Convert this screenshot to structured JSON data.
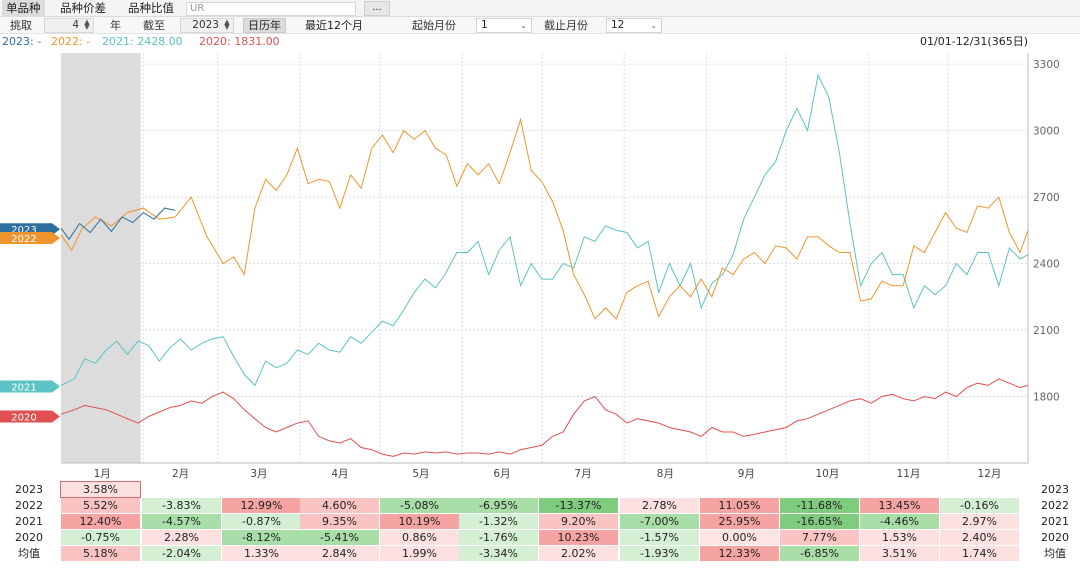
{
  "tabs": [
    {
      "label": "单品种",
      "active": true
    },
    {
      "label": "品种价差",
      "active": false
    },
    {
      "label": "品种比值",
      "active": false
    }
  ],
  "search": {
    "value": "UR",
    "more_label": "..."
  },
  "controls": {
    "select_label": "挑取",
    "start_year_value": "4",
    "year_label": "年",
    "end_label": "截至",
    "end_year_value": "2023",
    "calendar_btn": "日历年",
    "recent12_btn": "最近12个月",
    "start_month_label": "起始月份",
    "start_month_value": "1",
    "end_month_label": "截止月份",
    "end_month_value": "12"
  },
  "legend": [
    {
      "text": "2023: -",
      "color": "#2e6f9e"
    },
    {
      "text": "2022: -",
      "color": "#f0952d"
    },
    {
      "text": "2021: 2428.00",
      "color": "#5bc3c3"
    },
    {
      "text": "2020: 1831.00",
      "color": "#e05050"
    }
  ],
  "date_range": "01/01-12/31(365日)",
  "chart_data": {
    "type": "line",
    "title": "",
    "x_unit": "day_of_year",
    "xlim": [
      1,
      365
    ],
    "ylim": [
      1500,
      3350
    ],
    "y_ticks": [
      1800,
      2100,
      2400,
      2700,
      3000,
      3300
    ],
    "month_labels": [
      "1月",
      "2月",
      "3月",
      "4月",
      "5月",
      "6月",
      "7月",
      "8月",
      "9月",
      "10月",
      "11月",
      "12月"
    ],
    "shade_range_days": [
      1,
      31
    ],
    "series": [
      {
        "name": "2023",
        "color": "#2e6f9e",
        "tag": "2023",
        "tag_value": 2555,
        "x": [
          1,
          4,
          8,
          12,
          16,
          20,
          24,
          28,
          32,
          36,
          40,
          44
        ],
        "values": [
          2560,
          2510,
          2580,
          2540,
          2600,
          2545,
          2610,
          2585,
          2630,
          2600,
          2650,
          2640
        ]
      },
      {
        "name": "2022",
        "color": "#f0952d",
        "tag": "2022",
        "tag_value": 2515,
        "x": [
          1,
          5,
          9,
          14,
          20,
          26,
          32,
          38,
          44,
          50,
          56,
          62,
          66,
          70,
          74,
          78,
          82,
          86,
          90,
          94,
          98,
          102,
          106,
          110,
          114,
          118,
          122,
          126,
          130,
          134,
          138,
          142,
          146,
          150,
          154,
          158,
          162,
          166,
          170,
          174,
          178,
          182,
          186,
          190,
          194,
          198,
          202,
          206,
          210,
          214,
          218,
          222,
          226,
          230,
          234,
          238,
          242,
          246,
          250,
          254,
          258,
          262,
          266,
          270,
          274,
          278,
          282,
          286,
          290,
          294,
          298,
          302,
          306,
          310,
          314,
          318,
          322,
          326,
          330,
          334,
          338,
          342,
          346,
          350,
          354,
          358,
          362,
          365
        ],
        "values": [
          2530,
          2460,
          2560,
          2610,
          2570,
          2630,
          2650,
          2600,
          2610,
          2700,
          2520,
          2400,
          2430,
          2350,
          2650,
          2780,
          2730,
          2800,
          2920,
          2760,
          2780,
          2770,
          2650,
          2800,
          2740,
          2920,
          2980,
          2900,
          3000,
          2960,
          3000,
          2920,
          2890,
          2750,
          2850,
          2800,
          2850,
          2760,
          2900,
          3050,
          2820,
          2770,
          2680,
          2550,
          2350,
          2260,
          2150,
          2200,
          2150,
          2270,
          2300,
          2320,
          2160,
          2250,
          2300,
          2250,
          2330,
          2250,
          2380,
          2350,
          2420,
          2450,
          2400,
          2480,
          2470,
          2420,
          2520,
          2520,
          2480,
          2450,
          2450,
          2230,
          2240,
          2320,
          2300,
          2300,
          2480,
          2450,
          2540,
          2630,
          2560,
          2540,
          2660,
          2650,
          2700,
          2540,
          2450,
          2550
        ]
      },
      {
        "name": "2021",
        "color": "#5bc3c3",
        "tag": "2021",
        "tag_value": 1845,
        "x": [
          1,
          6,
          10,
          14,
          18,
          22,
          26,
          30,
          34,
          38,
          42,
          46,
          50,
          54,
          58,
          62,
          66,
          70,
          74,
          78,
          82,
          86,
          90,
          94,
          98,
          102,
          106,
          110,
          114,
          118,
          122,
          126,
          130,
          134,
          138,
          142,
          146,
          150,
          154,
          158,
          162,
          166,
          170,
          174,
          178,
          182,
          186,
          190,
          194,
          198,
          202,
          206,
          210,
          214,
          218,
          222,
          226,
          230,
          234,
          238,
          242,
          246,
          250,
          254,
          258,
          262,
          266,
          270,
          274,
          278,
          282,
          286,
          290,
          294,
          298,
          302,
          306,
          310,
          314,
          318,
          322,
          326,
          330,
          334,
          338,
          342,
          346,
          350,
          354,
          358,
          362,
          365
        ],
        "values": [
          1850,
          1880,
          1970,
          1950,
          2010,
          2050,
          1990,
          2050,
          2030,
          1960,
          2020,
          2060,
          2010,
          2040,
          2060,
          2070,
          1980,
          1900,
          1850,
          1960,
          1930,
          1950,
          2010,
          1990,
          2040,
          2010,
          2000,
          2070,
          2040,
          2090,
          2140,
          2120,
          2190,
          2270,
          2330,
          2290,
          2360,
          2450,
          2450,
          2500,
          2350,
          2460,
          2520,
          2300,
          2400,
          2330,
          2330,
          2400,
          2380,
          2520,
          2500,
          2570,
          2550,
          2540,
          2470,
          2500,
          2270,
          2400,
          2300,
          2400,
          2200,
          2310,
          2350,
          2440,
          2600,
          2700,
          2800,
          2860,
          3000,
          3100,
          3000,
          3250,
          3150,
          2900,
          2580,
          2300,
          2400,
          2450,
          2350,
          2350,
          2200,
          2300,
          2260,
          2300,
          2400,
          2350,
          2450,
          2450,
          2300,
          2470,
          2420,
          2440
        ]
      },
      {
        "name": "2020",
        "color": "#e05050",
        "tag": "2020",
        "tag_value": 1710,
        "x": [
          1,
          6,
          10,
          14,
          18,
          22,
          26,
          30,
          34,
          38,
          42,
          46,
          50,
          54,
          58,
          62,
          66,
          70,
          74,
          78,
          82,
          86,
          90,
          94,
          98,
          102,
          106,
          110,
          114,
          118,
          122,
          126,
          130,
          134,
          138,
          142,
          146,
          150,
          154,
          158,
          162,
          166,
          170,
          174,
          178,
          182,
          186,
          190,
          194,
          198,
          202,
          206,
          210,
          214,
          218,
          222,
          226,
          230,
          234,
          238,
          242,
          246,
          250,
          254,
          258,
          262,
          266,
          270,
          274,
          278,
          282,
          286,
          290,
          294,
          298,
          302,
          306,
          310,
          314,
          318,
          322,
          326,
          330,
          334,
          338,
          342,
          346,
          350,
          354,
          358,
          362,
          365
        ],
        "values": [
          1720,
          1740,
          1760,
          1750,
          1740,
          1720,
          1700,
          1680,
          1710,
          1730,
          1750,
          1760,
          1780,
          1770,
          1800,
          1820,
          1790,
          1740,
          1700,
          1660,
          1640,
          1660,
          1680,
          1690,
          1620,
          1600,
          1590,
          1610,
          1570,
          1560,
          1540,
          1530,
          1545,
          1540,
          1550,
          1545,
          1550,
          1540,
          1545,
          1545,
          1540,
          1550,
          1540,
          1560,
          1570,
          1580,
          1620,
          1640,
          1720,
          1780,
          1800,
          1740,
          1720,
          1680,
          1700,
          1690,
          1680,
          1660,
          1650,
          1640,
          1620,
          1660,
          1640,
          1640,
          1620,
          1630,
          1640,
          1650,
          1660,
          1690,
          1700,
          1720,
          1740,
          1760,
          1780,
          1790,
          1770,
          1800,
          1810,
          1790,
          1780,
          1800,
          1790,
          1820,
          1800,
          1840,
          1860,
          1850,
          1880,
          1860,
          1840,
          1850
        ]
      }
    ]
  },
  "table": {
    "row_years": [
      "2023",
      "2022",
      "2021",
      "2020"
    ],
    "avg_label": "均值",
    "rows": [
      {
        "year": "2023",
        "cells": [
          "3.58%",
          "",
          "",
          "",
          "",
          "",
          "",
          "",
          "",
          "",
          "",
          ""
        ]
      },
      {
        "year": "2022",
        "cells": [
          "5.52%",
          "-3.83%",
          "12.99%",
          "4.60%",
          "-5.08%",
          "-6.95%",
          "-13.37%",
          "2.78%",
          "11.05%",
          "-11.68%",
          "13.45%",
          "-0.16%"
        ]
      },
      {
        "year": "2021",
        "cells": [
          "12.40%",
          "-4.57%",
          "-0.87%",
          "9.35%",
          "10.19%",
          "-1.32%",
          "9.20%",
          "-7.00%",
          "25.95%",
          "-16.65%",
          "-4.46%",
          "2.97%"
        ]
      },
      {
        "year": "2020",
        "cells": [
          "-0.75%",
          "2.28%",
          "-8.12%",
          "-5.41%",
          "0.86%",
          "-1.76%",
          "10.23%",
          "-1.57%",
          "0.00%",
          "7.77%",
          "1.53%",
          "2.40%"
        ]
      },
      {
        "year": "均值",
        "cells": [
          "5.18%",
          "-2.04%",
          "1.33%",
          "2.84%",
          "1.99%",
          "-3.34%",
          "2.02%",
          "-1.93%",
          "12.33%",
          "-6.85%",
          "3.51%",
          "1.74%"
        ]
      }
    ]
  }
}
